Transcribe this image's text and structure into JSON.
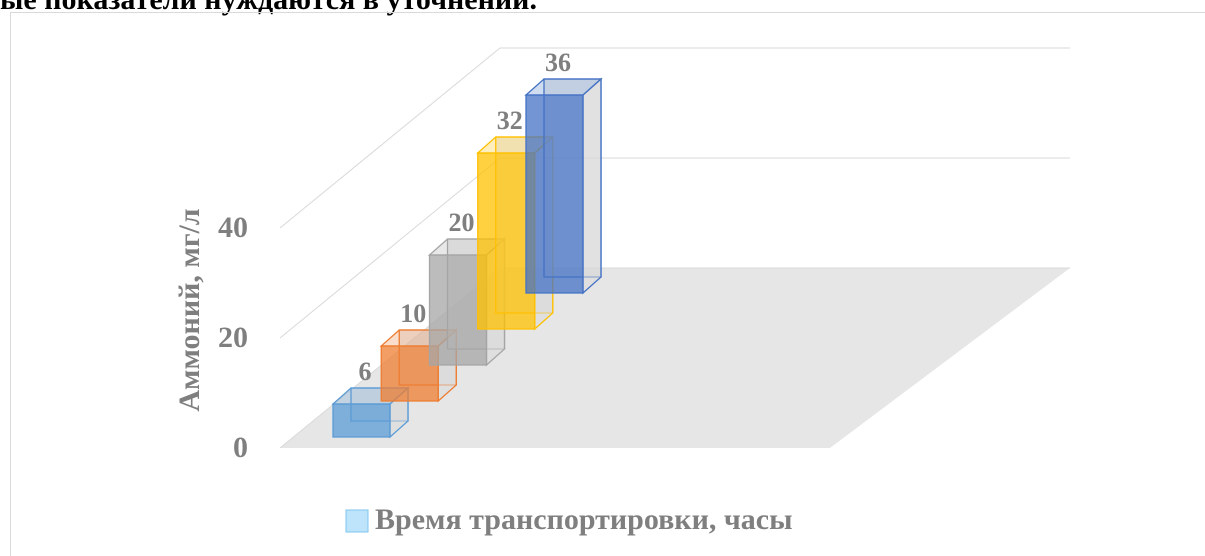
{
  "heading": "ые показатели нуждаются в уточнении.",
  "chart_data": {
    "type": "bar3d",
    "y_label": "Аммоний, мг/л",
    "categories": [
      null,
      null,
      null,
      null,
      null
    ],
    "series": [
      {
        "name": "Время транспортировки, часы",
        "color": "#bde4fb",
        "values": [
          6,
          10,
          20,
          32,
          36
        ],
        "colors": [
          "#5b9bd5",
          "#ed7d31",
          "#a5a5a5",
          "#ffc000",
          "#4472c4"
        ]
      }
    ],
    "ylim": [
      0,
      40
    ],
    "yticks": [
      0,
      20,
      40
    ],
    "grid": true,
    "legend": "bottom"
  }
}
